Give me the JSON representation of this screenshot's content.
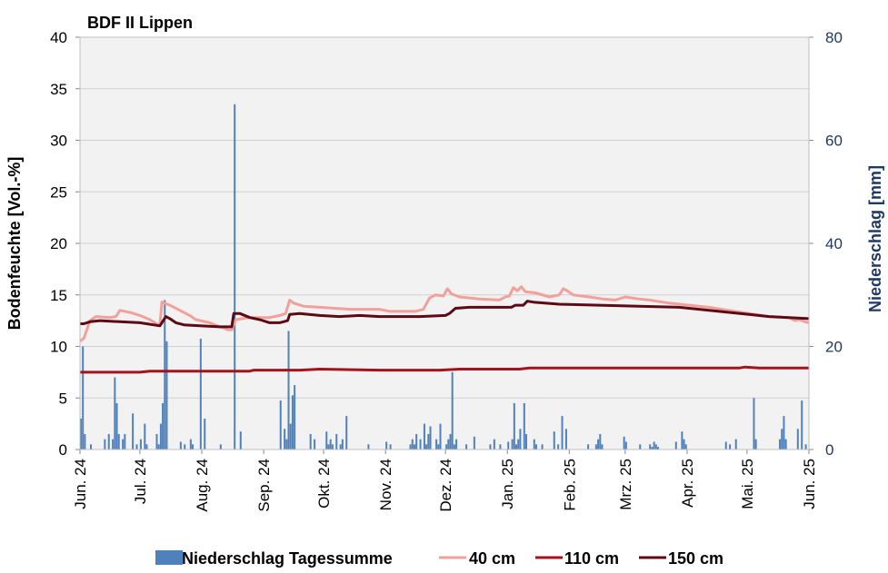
{
  "chart_data": {
    "type": "line",
    "title": "BDF II Lippen",
    "ylabel_left": "Bodenfeuchte [Vol.-%]",
    "ylabel_right": "Niederschlag [mm]",
    "ylim_left": [
      0,
      40
    ],
    "ylim_right": [
      0,
      80
    ],
    "yticks_left": [
      "0",
      "5",
      "10",
      "15",
      "20",
      "25",
      "30",
      "35",
      "40"
    ],
    "yticks_right": [
      "0",
      "20",
      "40",
      "60",
      "80"
    ],
    "xlim": [
      0,
      365
    ],
    "x_unit": "days since 2024-06-01",
    "month_ticks": [
      {
        "x": 0,
        "label": "Jun. 24"
      },
      {
        "x": 30,
        "label": "Jul. 24"
      },
      {
        "x": 61,
        "label": "Aug. 24"
      },
      {
        "x": 92,
        "label": "Sep. 24"
      },
      {
        "x": 122,
        "label": "Okt. 24"
      },
      {
        "x": 153,
        "label": "Nov. 24"
      },
      {
        "x": 183,
        "label": "Dez. 24"
      },
      {
        "x": 214,
        "label": "Jan. 25"
      },
      {
        "x": 245,
        "label": "Feb. 25"
      },
      {
        "x": 273,
        "label": "Mrz. 25"
      },
      {
        "x": 304,
        "label": "Apr. 25"
      },
      {
        "x": 334,
        "label": "Mai. 25"
      },
      {
        "x": 365,
        "label": "Jun. 25"
      }
    ],
    "grid": true,
    "legend_position": "bottom",
    "series": [
      {
        "name": "Niederschlag Tagessumme",
        "type": "bar",
        "axis": "right",
        "color": "#4f81bd",
        "points": [
          [
            0,
            6
          ],
          [
            1,
            20
          ],
          [
            2,
            3
          ],
          [
            5,
            1
          ],
          [
            12,
            2
          ],
          [
            14,
            3
          ],
          [
            16,
            2
          ],
          [
            17,
            14
          ],
          [
            18,
            9
          ],
          [
            19,
            3
          ],
          [
            21,
            2
          ],
          [
            22,
            3
          ],
          [
            26,
            7
          ],
          [
            28,
            1
          ],
          [
            30,
            2
          ],
          [
            32,
            5
          ],
          [
            33,
            1
          ],
          [
            38,
            3
          ],
          [
            39,
            1
          ],
          [
            40,
            5
          ],
          [
            41,
            9
          ],
          [
            42,
            29
          ],
          [
            43,
            21
          ],
          [
            50,
            1.5
          ],
          [
            52,
            1
          ],
          [
            55,
            2
          ],
          [
            56,
            1
          ],
          [
            60,
            21.5
          ],
          [
            62,
            6
          ],
          [
            70,
            1
          ],
          [
            77,
            67
          ],
          [
            80,
            3.5
          ],
          [
            100,
            9.5
          ],
          [
            102,
            4
          ],
          [
            103,
            2
          ],
          [
            104,
            23
          ],
          [
            105,
            5
          ],
          [
            106,
            10.5
          ],
          [
            107,
            12.5
          ],
          [
            115,
            3
          ],
          [
            117,
            2
          ],
          [
            123,
            3.5
          ],
          [
            124,
            1
          ],
          [
            125,
            2
          ],
          [
            126,
            1
          ],
          [
            128,
            3
          ],
          [
            130,
            1
          ],
          [
            131,
            2
          ],
          [
            133,
            6.5
          ],
          [
            144,
            1
          ],
          [
            153,
            1.5
          ],
          [
            155,
            1
          ],
          [
            165,
            1
          ],
          [
            166,
            2
          ],
          [
            167,
            1
          ],
          [
            168,
            3
          ],
          [
            170,
            2
          ],
          [
            172,
            5
          ],
          [
            173,
            1
          ],
          [
            174,
            3
          ],
          [
            175,
            4.5
          ],
          [
            178,
            2
          ],
          [
            179,
            1
          ],
          [
            180,
            5
          ],
          [
            183,
            1
          ],
          [
            184,
            2
          ],
          [
            185,
            3
          ],
          [
            186,
            15
          ],
          [
            187,
            1
          ],
          [
            188,
            2
          ],
          [
            193,
            1
          ],
          [
            197,
            2.5
          ],
          [
            205,
            1
          ],
          [
            207,
            2
          ],
          [
            210,
            1
          ],
          [
            214,
            1.5
          ],
          [
            216,
            2
          ],
          [
            217,
            9
          ],
          [
            218,
            1
          ],
          [
            219,
            2
          ],
          [
            220,
            4
          ],
          [
            222,
            9
          ],
          [
            223,
            3
          ],
          [
            227,
            2
          ],
          [
            228,
            1
          ],
          [
            231,
            1
          ],
          [
            237,
            3.5
          ],
          [
            239,
            1
          ],
          [
            241,
            6.5
          ],
          [
            243,
            4
          ],
          [
            254,
            1
          ],
          [
            258,
            1
          ],
          [
            259,
            2
          ],
          [
            260,
            3
          ],
          [
            261,
            1
          ],
          [
            272,
            2.5
          ],
          [
            273,
            1.5
          ],
          [
            280,
            1
          ],
          [
            285,
            1
          ],
          [
            286,
            0.5
          ],
          [
            287,
            1.5
          ],
          [
            288,
            1
          ],
          [
            289,
            0.5
          ],
          [
            298,
            1.5
          ],
          [
            301,
            3.5
          ],
          [
            302,
            2
          ],
          [
            303,
            1
          ],
          [
            323,
            1.5
          ],
          [
            325,
            1
          ],
          [
            328,
            2
          ],
          [
            337,
            10
          ],
          [
            338,
            2
          ],
          [
            350,
            2
          ],
          [
            351,
            4
          ],
          [
            352,
            6.5
          ],
          [
            353,
            2
          ],
          [
            359,
            4
          ],
          [
            361,
            9.5
          ],
          [
            363,
            1
          ]
        ]
      },
      {
        "name": "40 cm",
        "type": "line",
        "axis": "left",
        "color": "#f2a09a",
        "points": [
          [
            0,
            10.5
          ],
          [
            2,
            10.8
          ],
          [
            5,
            12.5
          ],
          [
            8,
            12.9
          ],
          [
            15,
            12.8
          ],
          [
            18,
            12.9
          ],
          [
            20,
            13.5
          ],
          [
            25,
            13.3
          ],
          [
            30,
            13.0
          ],
          [
            35,
            12.6
          ],
          [
            40,
            12.0
          ],
          [
            41,
            14.3
          ],
          [
            45,
            14.0
          ],
          [
            50,
            13.5
          ],
          [
            55,
            13.0
          ],
          [
            58,
            12.6
          ],
          [
            65,
            12.3
          ],
          [
            70,
            11.9
          ],
          [
            72,
            11.8
          ],
          [
            74,
            11.6
          ],
          [
            76,
            11.6
          ],
          [
            78,
            12.6
          ],
          [
            85,
            12.8
          ],
          [
            95,
            12.8
          ],
          [
            100,
            13.0
          ],
          [
            103,
            13.2
          ],
          [
            105,
            14.5
          ],
          [
            107,
            14.2
          ],
          [
            112,
            13.9
          ],
          [
            120,
            13.8
          ],
          [
            135,
            13.6
          ],
          [
            150,
            13.6
          ],
          [
            155,
            13.4
          ],
          [
            168,
            13.4
          ],
          [
            172,
            13.6
          ],
          [
            175,
            14.7
          ],
          [
            178,
            15.0
          ],
          [
            182,
            14.9
          ],
          [
            184,
            15.6
          ],
          [
            186,
            15.1
          ],
          [
            190,
            14.8
          ],
          [
            200,
            14.6
          ],
          [
            210,
            14.5
          ],
          [
            213,
            14.8
          ],
          [
            215,
            14.9
          ],
          [
            217,
            15.7
          ],
          [
            219,
            15.4
          ],
          [
            221,
            15.8
          ],
          [
            223,
            15.3
          ],
          [
            228,
            15.2
          ],
          [
            235,
            14.8
          ],
          [
            240,
            15.0
          ],
          [
            242,
            15.6
          ],
          [
            244,
            15.4
          ],
          [
            247,
            15.0
          ],
          [
            255,
            14.8
          ],
          [
            262,
            14.6
          ],
          [
            268,
            14.5
          ],
          [
            273,
            14.8
          ],
          [
            280,
            14.6
          ],
          [
            285,
            14.5
          ],
          [
            295,
            14.2
          ],
          [
            305,
            14.0
          ],
          [
            315,
            13.8
          ],
          [
            325,
            13.5
          ],
          [
            335,
            13.2
          ],
          [
            345,
            12.9
          ],
          [
            355,
            12.8
          ],
          [
            358,
            12.5
          ],
          [
            360,
            12.6
          ],
          [
            363,
            12.4
          ],
          [
            365,
            12.3
          ]
        ]
      },
      {
        "name": "110 cm",
        "type": "line",
        "axis": "left",
        "color": "#a6121c",
        "points": [
          [
            0,
            7.5
          ],
          [
            30,
            7.5
          ],
          [
            35,
            7.6
          ],
          [
            60,
            7.6
          ],
          [
            75,
            7.6
          ],
          [
            85,
            7.6
          ],
          [
            87,
            7.7
          ],
          [
            105,
            7.7
          ],
          [
            110,
            7.7
          ],
          [
            120,
            7.8
          ],
          [
            150,
            7.7
          ],
          [
            180,
            7.7
          ],
          [
            190,
            7.8
          ],
          [
            220,
            7.8
          ],
          [
            225,
            7.9
          ],
          [
            260,
            7.9
          ],
          [
            300,
            7.9
          ],
          [
            330,
            7.9
          ],
          [
            333,
            8.0
          ],
          [
            340,
            7.9
          ],
          [
            365,
            7.9
          ]
        ]
      },
      {
        "name": "150 cm",
        "type": "line",
        "axis": "left",
        "color": "#5c0a14",
        "points": [
          [
            0,
            12.2
          ],
          [
            2,
            12.2
          ],
          [
            5,
            12.4
          ],
          [
            10,
            12.5
          ],
          [
            20,
            12.4
          ],
          [
            30,
            12.3
          ],
          [
            40,
            12.0
          ],
          [
            41,
            12.3
          ],
          [
            43,
            12.9
          ],
          [
            45,
            12.7
          ],
          [
            48,
            12.3
          ],
          [
            52,
            12.1
          ],
          [
            60,
            12.0
          ],
          [
            70,
            11.9
          ],
          [
            76,
            11.9
          ],
          [
            77,
            13.2
          ],
          [
            80,
            13.2
          ],
          [
            85,
            12.8
          ],
          [
            90,
            12.6
          ],
          [
            95,
            12.3
          ],
          [
            100,
            12.3
          ],
          [
            104,
            12.5
          ],
          [
            105,
            13.1
          ],
          [
            110,
            13.2
          ],
          [
            120,
            13.0
          ],
          [
            130,
            12.9
          ],
          [
            140,
            13.0
          ],
          [
            150,
            12.9
          ],
          [
            165,
            12.9
          ],
          [
            170,
            12.9
          ],
          [
            183,
            13.0
          ],
          [
            185,
            13.2
          ],
          [
            188,
            13.7
          ],
          [
            195,
            13.8
          ],
          [
            210,
            13.8
          ],
          [
            216,
            13.8
          ],
          [
            218,
            14.0
          ],
          [
            222,
            14.0
          ],
          [
            224,
            14.4
          ],
          [
            227,
            14.3
          ],
          [
            240,
            14.1
          ],
          [
            260,
            14.0
          ],
          [
            280,
            13.9
          ],
          [
            300,
            13.8
          ],
          [
            310,
            13.6
          ],
          [
            325,
            13.3
          ],
          [
            335,
            13.1
          ],
          [
            345,
            12.9
          ],
          [
            355,
            12.8
          ],
          [
            365,
            12.7
          ]
        ]
      }
    ]
  }
}
